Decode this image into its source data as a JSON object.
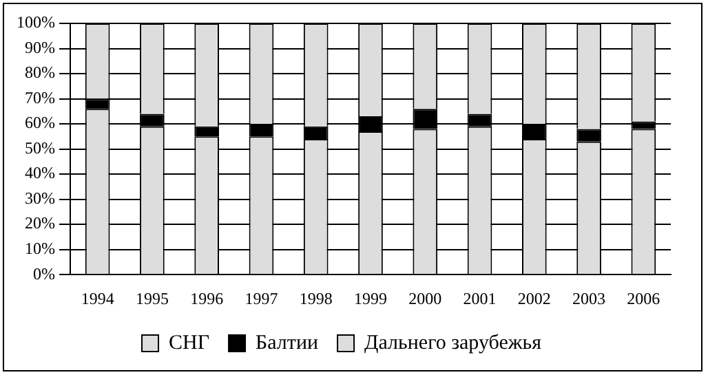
{
  "chart_data": {
    "type": "bar",
    "stacked": true,
    "categories": [
      "1994",
      "1995",
      "1996",
      "1997",
      "1998",
      "1999",
      "2000",
      "2001",
      "2002",
      "2003",
      "2006"
    ],
    "series": [
      {
        "name": "СНГ",
        "color": "#dddddd",
        "values": [
          66,
          59,
          55,
          55,
          54,
          57,
          58,
          59,
          54,
          53,
          58
        ]
      },
      {
        "name": "Балтии",
        "color": "#000000",
        "values": [
          4,
          5,
          4,
          5,
          5,
          6,
          8,
          5,
          6,
          5,
          3
        ]
      },
      {
        "name": "Дальнего зарубежья",
        "color": "#dddddd",
        "values": [
          30,
          36,
          41,
          40,
          41,
          37,
          34,
          36,
          40,
          42,
          39
        ]
      }
    ],
    "ylim": [
      0,
      100
    ],
    "yticks": [
      {
        "value": 0,
        "label": "0%"
      },
      {
        "value": 10,
        "label": "10%"
      },
      {
        "value": 20,
        "label": "20%"
      },
      {
        "value": 30,
        "label": "30%"
      },
      {
        "value": 40,
        "label": "40%"
      },
      {
        "value": 50,
        "label": "50%"
      },
      {
        "value": 60,
        "label": "60%"
      },
      {
        "value": 70,
        "label": "70%"
      },
      {
        "value": 80,
        "label": "80%"
      },
      {
        "value": 90,
        "label": "90%"
      },
      {
        "value": 100,
        "label": "100%"
      }
    ],
    "grid": "y",
    "legend": "bottom"
  }
}
